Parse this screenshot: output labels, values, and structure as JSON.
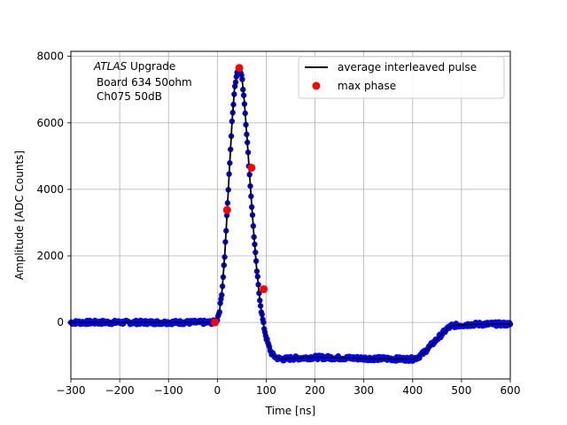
{
  "chart_data": {
    "type": "line",
    "xlabel": "Time [ns]",
    "ylabel": "Amplitude [ADC Counts]",
    "xlim": [
      -300,
      600
    ],
    "ylim": [
      -1700,
      8150
    ],
    "xticks": [
      -300,
      -200,
      -100,
      0,
      100,
      200,
      300,
      400,
      500,
      600
    ],
    "xtick_labels": [
      "−300",
      "−200",
      "−100",
      "0",
      "100",
      "200",
      "300",
      "400",
      "500",
      "600"
    ],
    "yticks": [
      0,
      2000,
      4000,
      6000,
      8000
    ],
    "ytick_labels": [
      "0",
      "2000",
      "4000",
      "6000",
      "8000"
    ],
    "grid": true,
    "legend_position": "top-right",
    "annotation": {
      "line1_italic": "ATLAS",
      "line1_rest": " Upgrade",
      "line2": "Board 634 50ohm",
      "line3": "Ch075 50dB"
    },
    "series": [
      {
        "name": "average interleaved pulse",
        "style": "line",
        "color": "#000000",
        "x": [
          -300,
          -100,
          -10,
          -5,
          0,
          5,
          10,
          15,
          20,
          25,
          30,
          35,
          40,
          45,
          50,
          55,
          60,
          65,
          70,
          75,
          80,
          85,
          90,
          95,
          100,
          105,
          110,
          115,
          120,
          125,
          130,
          140,
          150,
          200,
          300,
          380,
          400,
          410,
          420,
          430,
          440,
          450,
          460,
          470,
          480,
          500,
          520,
          550,
          600
        ],
        "y": [
          0,
          0,
          0,
          20,
          100,
          400,
          1000,
          2000,
          3300,
          4700,
          6000,
          7000,
          7500,
          7650,
          7400,
          6700,
          5700,
          4650,
          3600,
          2600,
          1700,
          950,
          350,
          -100,
          -450,
          -700,
          -900,
          -1000,
          -1050,
          -1080,
          -1100,
          -1100,
          -1080,
          -1050,
          -1080,
          -1100,
          -1100,
          -1050,
          -950,
          -800,
          -650,
          -500,
          -350,
          -200,
          -100,
          -80,
          -60,
          -50,
          -50
        ]
      },
      {
        "name": "max phase",
        "style": "markers",
        "color": "#ff0000",
        "x": [
          -5,
          20,
          45,
          70,
          95
        ],
        "y": [
          0,
          3380,
          7650,
          4650,
          1000
        ]
      }
    ],
    "scatter_color": "#0000ff"
  }
}
